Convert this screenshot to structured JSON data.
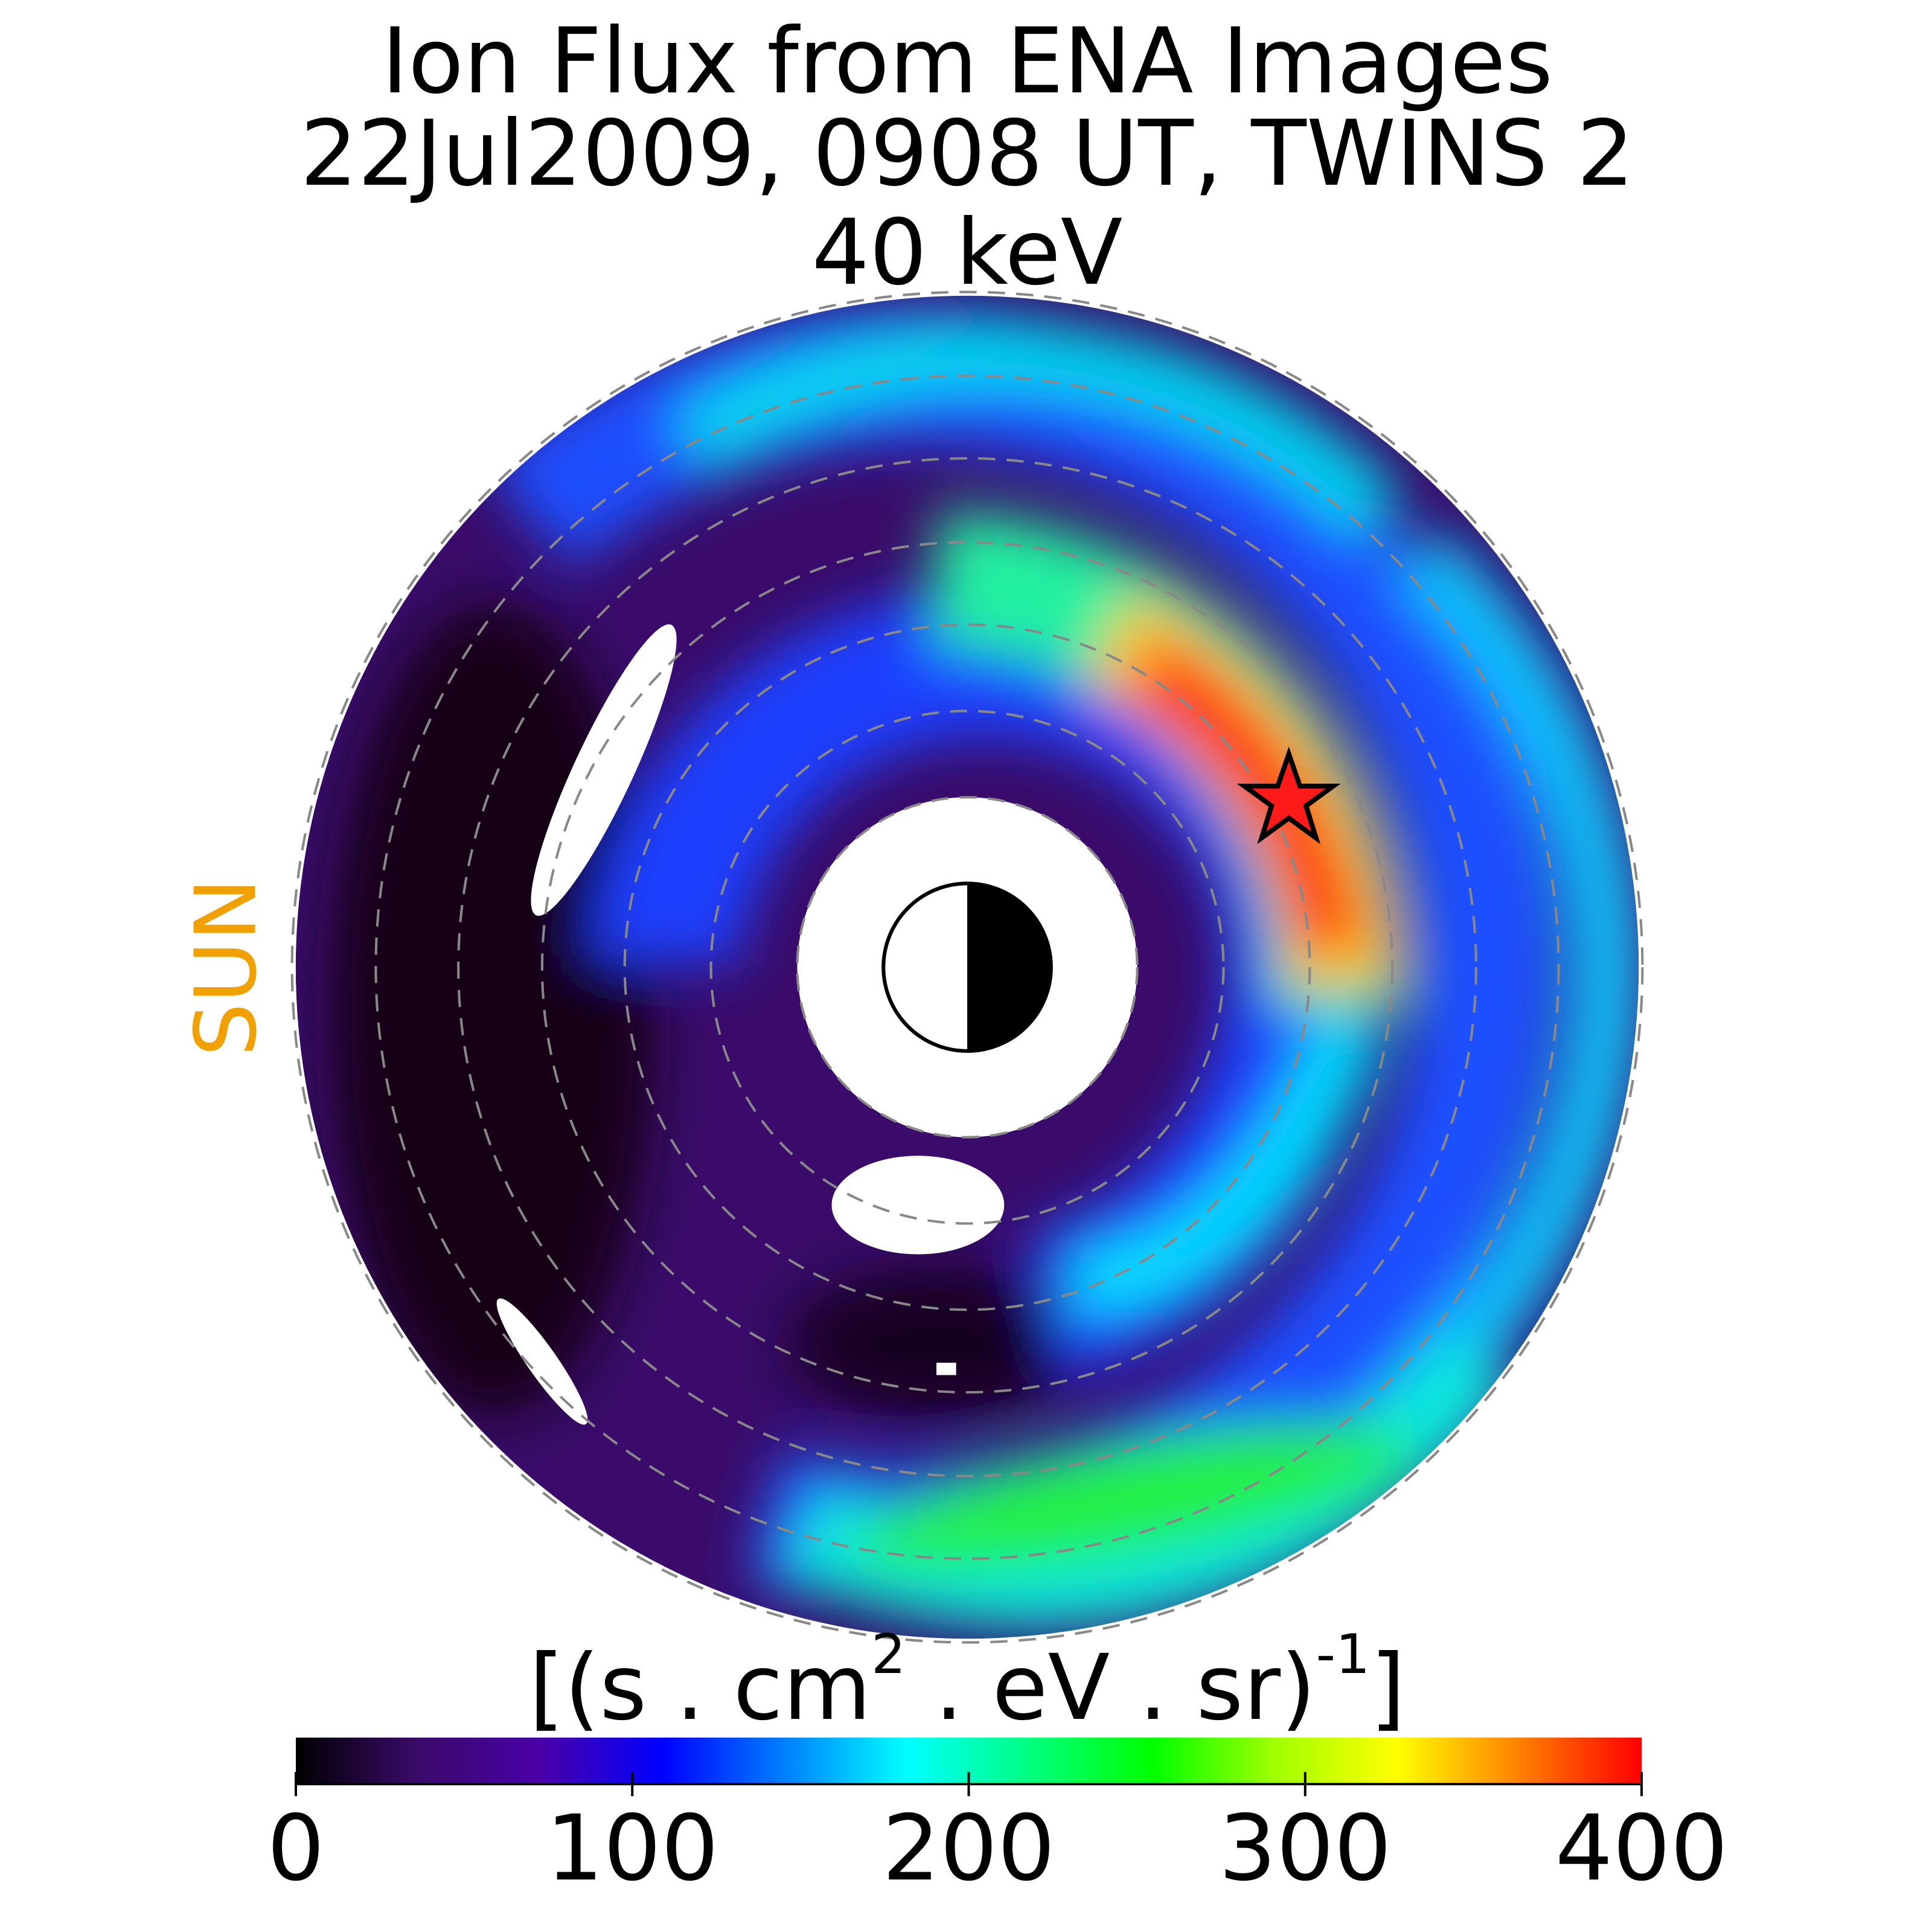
{
  "chart_data": {
    "type": "polar-map",
    "title": [
      "Ion Flux from  ENA Images",
      "22Jul2009, 0908 UT,  TWINS 2",
      "40 keV"
    ],
    "side_label": "SUN",
    "side_label_color": "#f0a000",
    "colorbar_label": [
      "[(s . cm",
      "2",
      "  . eV . sr)",
      "-1",
      "]"
    ],
    "clim": [
      0,
      400
    ],
    "cticks": [
      0,
      100,
      200,
      300,
      400
    ],
    "colormap": [
      "#000000",
      "#3a0a6a",
      "#4a00a8",
      "#0000ff",
      "#0080ff",
      "#00ffff",
      "#00ff80",
      "#00ff00",
      "#a0ff00",
      "#ffff00",
      "#ff8000",
      "#ff0000"
    ]
  }
}
